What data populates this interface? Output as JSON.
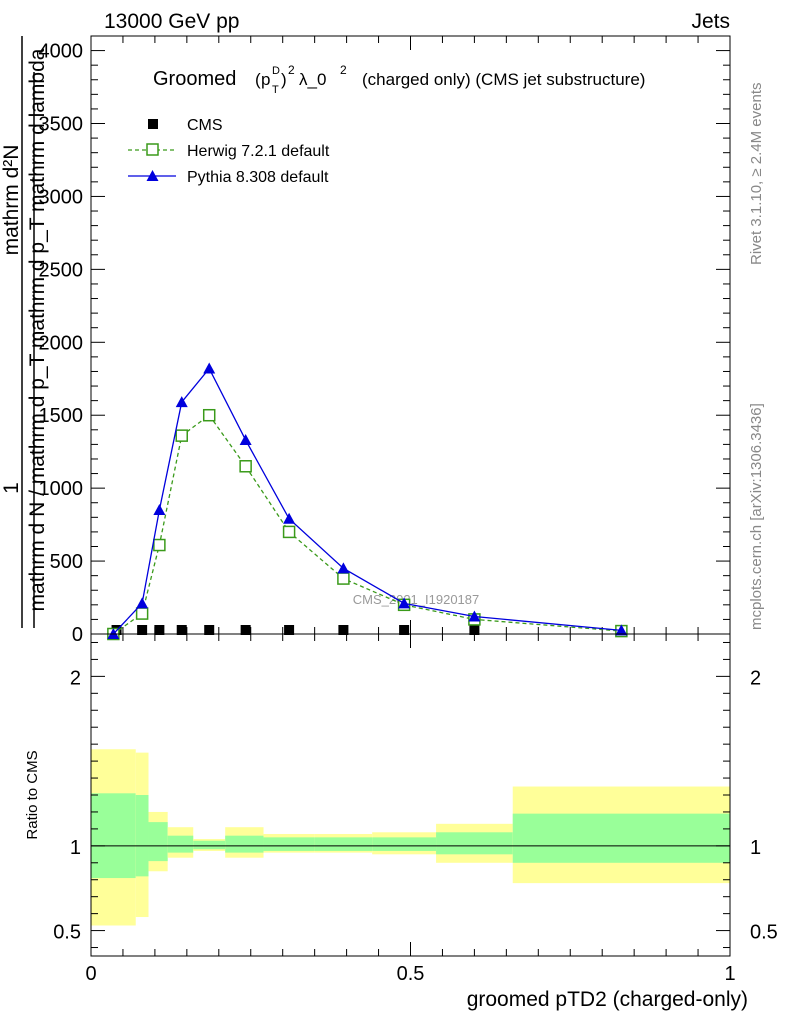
{
  "header": {
    "left": "13000 GeV pp",
    "right": "Jets"
  },
  "side": {
    "rivet": "Rivet 3.1.10, ≥ 2.4M events",
    "mcplots": "mcplots.cern.ch [arXiv:1306.3436]"
  },
  "chart_data": {
    "type": "line",
    "title": {
      "prefix": "Groomed",
      "pt": "p",
      "sup_d": "D",
      "sub_t": "T",
      "sq": "2",
      "lambda": "λ_0",
      "rest": "(charged only) (CMS jet substructure)"
    },
    "ylabel": {
      "num": "mathrm d²N",
      "one": "1",
      "den": "mathrm d N / mathrm d p_T mathrm d p_T mathrm d lambda"
    },
    "xlabel": "groomed pTD2 (charged-only)",
    "watermark": "CMS_2021_I1920187",
    "xlim": [
      0,
      1
    ],
    "ylim": [
      0,
      4100
    ],
    "yticks": [
      0,
      500,
      1000,
      1500,
      2000,
      2500,
      3000,
      3500,
      4000
    ],
    "xticks": [
      0,
      0.5,
      1
    ],
    "xtick_labels": [
      "0",
      "0.5",
      "1"
    ],
    "legend_position": "top-left",
    "series": [
      {
        "name": "CMS",
        "marker": "square-filled",
        "color": "#000000",
        "x": [
          0.04,
          0.08,
          0.107,
          0.142,
          0.185,
          0.242,
          0.31,
          0.395,
          0.49,
          0.6
        ],
        "y": [
          0,
          0,
          0,
          0,
          0,
          0,
          0,
          0,
          0,
          0
        ]
      },
      {
        "name": "Herwig 7.2.1 default",
        "marker": "square-open",
        "color": "#3a9a1a",
        "line": "dashed",
        "x": [
          0.035,
          0.08,
          0.107,
          0.142,
          0.185,
          0.242,
          0.31,
          0.395,
          0.49,
          0.6,
          0.83
        ],
        "y": [
          0,
          140,
          610,
          1360,
          1500,
          1150,
          700,
          380,
          200,
          100,
          20
        ]
      },
      {
        "name": "Pythia 8.308 default",
        "marker": "triangle-filled",
        "color": "#0000dd",
        "line": "solid",
        "x": [
          0.035,
          0.08,
          0.107,
          0.142,
          0.185,
          0.242,
          0.31,
          0.395,
          0.49,
          0.6,
          0.83
        ],
        "y": [
          0,
          210,
          850,
          1590,
          1820,
          1330,
          790,
          450,
          210,
          120,
          25
        ]
      }
    ],
    "ratio": {
      "ylabel": "Ratio to CMS",
      "ylim": [
        0.35,
        2.25
      ],
      "yticks": [
        0.5,
        1,
        2
      ],
      "ytick_labels": [
        "0.5",
        "1",
        "2"
      ],
      "reference": 1,
      "bins": [
        {
          "x0": 0.0,
          "x1": 0.07,
          "inner": [
            0.81,
            1.31
          ],
          "outer": [
            0.53,
            1.57
          ]
        },
        {
          "x0": 0.07,
          "x1": 0.09,
          "inner": [
            0.82,
            1.3
          ],
          "outer": [
            0.58,
            1.55
          ]
        },
        {
          "x0": 0.09,
          "x1": 0.12,
          "inner": [
            0.91,
            1.14
          ],
          "outer": [
            0.85,
            1.2
          ]
        },
        {
          "x0": 0.12,
          "x1": 0.16,
          "inner": [
            0.96,
            1.06
          ],
          "outer": [
            0.93,
            1.11
          ]
        },
        {
          "x0": 0.16,
          "x1": 0.21,
          "inner": [
            0.98,
            1.03
          ],
          "outer": [
            0.97,
            1.04
          ]
        },
        {
          "x0": 0.21,
          "x1": 0.27,
          "inner": [
            0.96,
            1.06
          ],
          "outer": [
            0.93,
            1.11
          ]
        },
        {
          "x0": 0.27,
          "x1": 0.35,
          "inner": [
            0.97,
            1.05
          ],
          "outer": [
            0.96,
            1.07
          ]
        },
        {
          "x0": 0.35,
          "x1": 0.44,
          "inner": [
            0.97,
            1.05
          ],
          "outer": [
            0.96,
            1.07
          ]
        },
        {
          "x0": 0.44,
          "x1": 0.54,
          "inner": [
            0.97,
            1.05
          ],
          "outer": [
            0.95,
            1.08
          ]
        },
        {
          "x0": 0.54,
          "x1": 0.66,
          "inner": [
            0.95,
            1.08
          ],
          "outer": [
            0.9,
            1.13
          ]
        },
        {
          "x0": 0.66,
          "x1": 1.0,
          "inner": [
            0.9,
            1.19
          ],
          "outer": [
            0.78,
            1.35
          ]
        }
      ]
    }
  }
}
